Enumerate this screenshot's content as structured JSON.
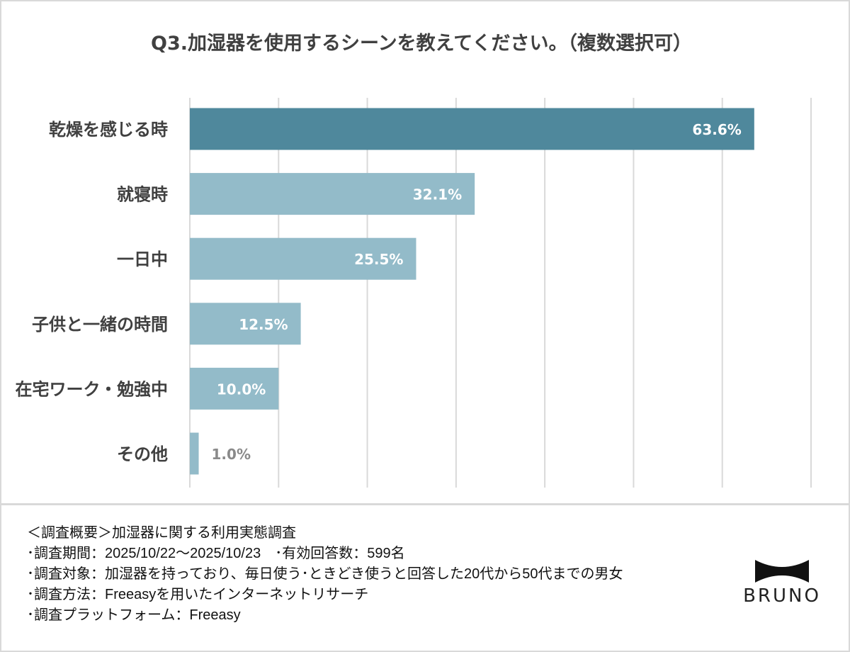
{
  "chart_data": {
    "type": "bar",
    "orientation": "horizontal",
    "title": "Q3.加湿器を使用するシーンを教えてください。（複数選択可）",
    "categories": [
      "乾燥を感じる時",
      "就寝時",
      "一日中",
      "子供と一緒の時間",
      "在宅ワーク・勉強中",
      "その他"
    ],
    "values": [
      63.6,
      32.1,
      25.5,
      12.5,
      10.0,
      1.0
    ],
    "value_labels": [
      "63.6%",
      "32.1%",
      "25.5%",
      "12.5%",
      "10.0%",
      "1.0%"
    ],
    "unit": "%",
    "xlim": [
      0,
      70
    ],
    "grid_step": 10,
    "grid": true,
    "xlabel": "",
    "ylabel": "",
    "colors": {
      "highlight": "#4f889c",
      "default": "#93bbc9",
      "grid": "#d9d9d9",
      "label": "#404040",
      "outside_label": "#8a8a8a"
    }
  },
  "footer": {
    "lines": [
      "＜調査概要＞加湿器に関する利用実態調査",
      "･調査期間：2025/10/22～2025/10/23　･有効回答数：599名",
      "･調査対象：加湿器を持っており、毎日使う･ときどき使うと回答した20代から50代までの男女",
      "･調査方法：Freeasyを用いたインターネットリサーチ",
      "･調査プラットフォーム：Freeasy"
    ]
  },
  "logo": {
    "text": "BRUNO"
  }
}
